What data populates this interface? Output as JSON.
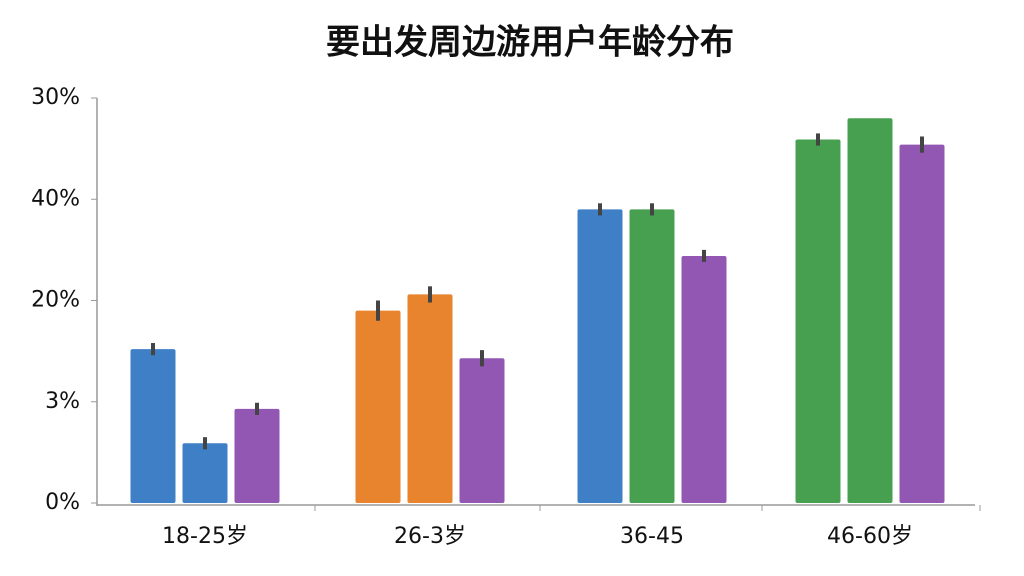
{
  "chart_data": {
    "type": "bar",
    "title": "要出发周边游用户年龄分布",
    "categories": [
      "18-25岁",
      "26-3岁",
      "36-45",
      "46-60岁"
    ],
    "series": [
      {
        "values": [
          1.52,
          1.9,
          2.9,
          3.59
        ],
        "errors": [
          0.06,
          0.1,
          0.06,
          0.06
        ],
        "colors": [
          "#3f7fc6",
          "#e8832e",
          "#3f7fc6",
          "#47a04f"
        ]
      },
      {
        "values": [
          0.59,
          2.06,
          2.9,
          3.8
        ],
        "errors": [
          0.06,
          0.08,
          0.06,
          null
        ],
        "colors": [
          "#3f7fc6",
          "#e8832e",
          "#47a04f",
          "#47a04f"
        ]
      },
      {
        "values": [
          0.93,
          1.43,
          2.44,
          3.54
        ],
        "errors": [
          0.06,
          0.08,
          0.06,
          0.08
        ],
        "colors": [
          "#9257b3",
          "#9257b3",
          "#9257b3",
          "#9257b3"
        ]
      }
    ],
    "ylim": [
      0,
      4
    ],
    "yticks": [
      {
        "value": 0,
        "label": "0%"
      },
      {
        "value": 1,
        "label": "3%"
      },
      {
        "value": 2,
        "label": "20%"
      },
      {
        "value": 3,
        "label": "40%"
      },
      {
        "value": 4,
        "label": "30%"
      }
    ]
  }
}
